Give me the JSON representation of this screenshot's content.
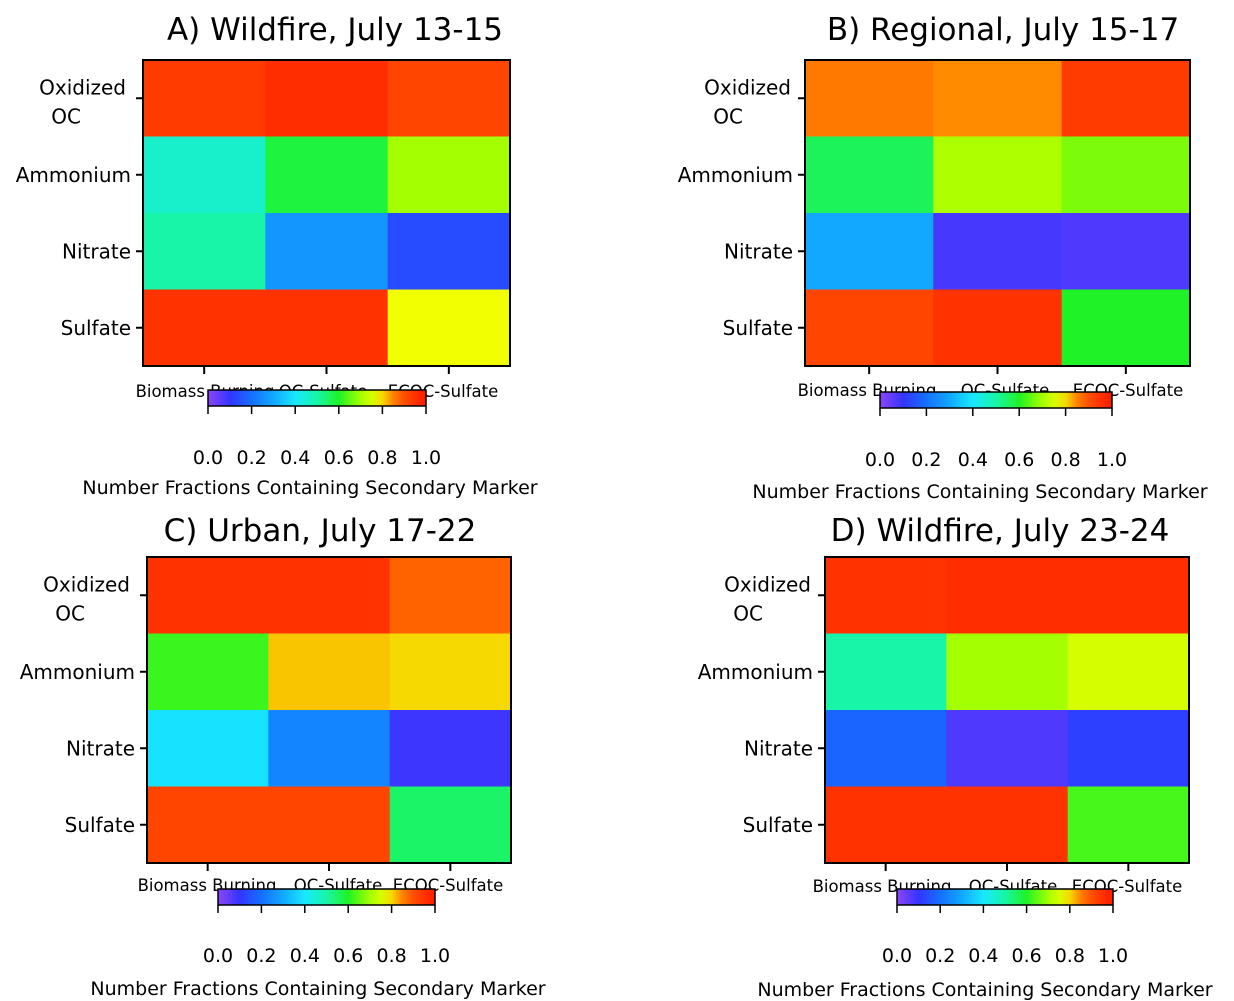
{
  "chart_data": [
    {
      "type": "heatmap",
      "title": "A) Wildfire, July 13-15",
      "rows": [
        "Oxidized OC",
        "Ammonium",
        "Nitrate",
        "Sulfate"
      ],
      "columns": [
        "Biomass Burning",
        "OC-Sulfate",
        "ECOC-Sulfate"
      ],
      "values": [
        [
          0.93,
          0.96,
          0.91
        ],
        [
          0.46,
          0.58,
          0.7
        ],
        [
          0.5,
          0.27,
          0.14
        ],
        [
          0.95,
          0.95,
          0.78
        ]
      ],
      "colorbar": {
        "range": [
          0,
          1
        ],
        "ticks": [
          "0.0",
          "0.2",
          "0.4",
          "0.6",
          "0.8",
          "1.0"
        ],
        "label": "Number Fractions Containing Secondary Marker"
      }
    },
    {
      "type": "heatmap",
      "title": "B) Regional, July 15-17",
      "rows": [
        "Oxidized OC",
        "Ammonium",
        "Nitrate",
        "Sulfate"
      ],
      "columns": [
        "Biomass Burning",
        "OC-Sulfate",
        "ECOC-Sulfate"
      ],
      "values": [
        [
          0.86,
          0.84,
          0.93
        ],
        [
          0.56,
          0.71,
          0.67
        ],
        [
          0.3,
          0.08,
          0.07
        ],
        [
          0.91,
          0.95,
          0.6
        ]
      ],
      "colorbar": {
        "range": [
          0,
          1
        ],
        "ticks": [
          "0.0",
          "0.2",
          "0.4",
          "0.6",
          "0.8",
          "1.0"
        ],
        "label": "Number Fractions Containing Secondary Marker"
      }
    },
    {
      "type": "heatmap",
      "title": "C) Urban, July 17-22",
      "rows": [
        "Oxidized OC",
        "Ammonium",
        "Nitrate",
        "Sulfate"
      ],
      "columns": [
        "Biomass Burning",
        "OC-Sulfate",
        "ECOC-Sulfate"
      ],
      "values": [
        [
          0.95,
          0.95,
          0.88
        ],
        [
          0.62,
          0.81,
          0.8
        ],
        [
          0.39,
          0.24,
          0.09
        ],
        [
          0.91,
          0.91,
          0.55
        ]
      ],
      "colorbar": {
        "range": [
          0,
          1
        ],
        "ticks": [
          "0.0",
          "0.2",
          "0.4",
          "0.6",
          "0.8",
          "1.0"
        ],
        "label": "Number Fractions Containing Secondary Marker"
      }
    },
    {
      "type": "heatmap",
      "title": "D) Wildfire, July 23-24",
      "rows": [
        "Oxidized OC",
        "Ammonium",
        "Nitrate",
        "Sulfate"
      ],
      "columns": [
        "Biomass Burning",
        "OC-Sulfate",
        "ECOC-Sulfate"
      ],
      "values": [
        [
          0.95,
          0.96,
          0.96
        ],
        [
          0.5,
          0.7,
          0.75
        ],
        [
          0.18,
          0.07,
          0.12
        ],
        [
          0.95,
          0.95,
          0.63
        ]
      ],
      "colorbar": {
        "range": [
          0,
          1
        ],
        "ticks": [
          "0.0",
          "0.2",
          "0.4",
          "0.6",
          "0.8",
          "1.0"
        ],
        "label": "Number Fractions Containing Secondary Marker"
      }
    }
  ],
  "colormap": {
    "stops": [
      [
        0.0,
        "#8c46f5"
      ],
      [
        0.1,
        "#3434ff"
      ],
      [
        0.2,
        "#1470ff"
      ],
      [
        0.3,
        "#12a8ff"
      ],
      [
        0.4,
        "#18e8ff"
      ],
      [
        0.5,
        "#18f5a8"
      ],
      [
        0.6,
        "#1ff226"
      ],
      [
        0.7,
        "#a4ff00"
      ],
      [
        0.78,
        "#f2ff00"
      ],
      [
        0.84,
        "#ff8c00"
      ],
      [
        0.91,
        "#ff4500"
      ],
      [
        1.0,
        "#ff1a00"
      ]
    ]
  }
}
